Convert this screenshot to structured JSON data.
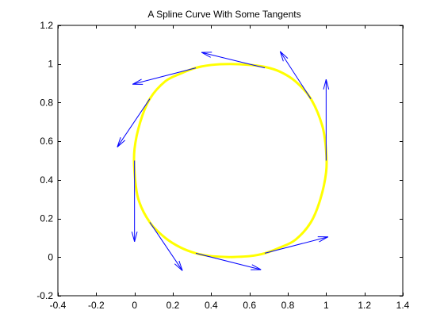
{
  "chart_data": {
    "type": "line",
    "title": "A Spline Curve With Some Tangents",
    "xlabel": "",
    "ylabel": "",
    "xlim": [
      -0.4,
      1.4
    ],
    "ylim": [
      -0.2,
      1.2
    ],
    "xticks": [
      -0.4,
      -0.2,
      0,
      0.2,
      0.4,
      0.6,
      0.8,
      1,
      1.2,
      1.4
    ],
    "yticks": [
      -0.2,
      0,
      0.2,
      0.4,
      0.6,
      0.8,
      1,
      1.2
    ],
    "xtick_labels": [
      "-0.4",
      "-0.2",
      "0",
      "0.2",
      "0.4",
      "0.6",
      "0.8",
      "1",
      "1.2",
      "1.4"
    ],
    "ytick_labels": [
      "-0.2",
      "0",
      "0.2",
      "0.4",
      "0.6",
      "0.8",
      "1",
      "1.2"
    ],
    "grid": false,
    "curve": {
      "color": "#ffff00",
      "x": [
        0.5,
        0.6,
        0.68,
        0.76,
        0.84,
        0.92,
        0.97,
        1.0,
        1.0,
        0.98,
        0.92,
        0.84,
        0.76,
        0.68,
        0.6,
        0.5,
        0.4,
        0.32,
        0.24,
        0.16,
        0.08,
        0.03,
        0.0,
        0.0,
        0.02,
        0.08,
        0.16,
        0.24,
        0.32,
        0.4,
        0.5
      ],
      "y": [
        0.0,
        0.005,
        0.02,
        0.05,
        0.09,
        0.18,
        0.3,
        0.44,
        0.55,
        0.68,
        0.82,
        0.91,
        0.96,
        0.985,
        0.995,
        1.0,
        0.995,
        0.98,
        0.95,
        0.91,
        0.82,
        0.7,
        0.56,
        0.44,
        0.3,
        0.18,
        0.1,
        0.05,
        0.02,
        0.005,
        0.0
      ]
    },
    "tangents": {
      "color": "#0000ff",
      "vectors": [
        {
          "x0": 0.0,
          "y0": 0.5,
          "x1": 0.0,
          "y1": 0.08
        },
        {
          "x0": 0.08,
          "y0": 0.18,
          "x1": 0.25,
          "y1": -0.07
        },
        {
          "x0": 0.32,
          "y0": 0.02,
          "x1": 0.66,
          "y1": -0.065
        },
        {
          "x0": 0.68,
          "y0": 0.02,
          "x1": 1.01,
          "y1": 0.105
        },
        {
          "x0": 1.0,
          "y0": 0.5,
          "x1": 1.0,
          "y1": 0.92
        },
        {
          "x0": 0.92,
          "y0": 0.82,
          "x1": 0.76,
          "y1": 1.065
        },
        {
          "x0": 0.68,
          "y0": 0.98,
          "x1": 0.35,
          "y1": 1.06
        },
        {
          "x0": 0.32,
          "y0": 0.98,
          "x1": -0.01,
          "y1": 0.895
        },
        {
          "x0": 0.08,
          "y0": 0.82,
          "x1": -0.09,
          "y1": 0.57
        }
      ]
    }
  }
}
